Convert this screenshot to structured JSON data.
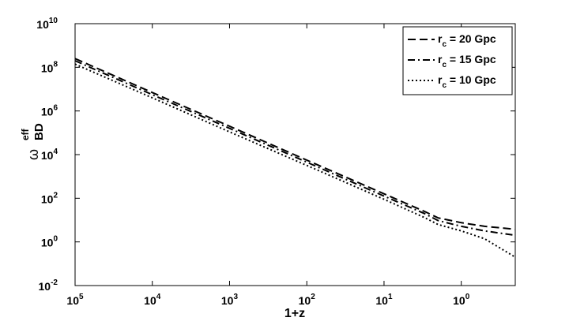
{
  "chart_data": {
    "type": "line",
    "x_label": "1+z",
    "y_label": {
      "symbol": "ω",
      "subscript": "BD",
      "superscript": "eff"
    },
    "log_x": true,
    "log_y": true,
    "xlim": [
      100000,
      0.2
    ],
    "ylim": [
      0.01,
      10000000000
    ],
    "xticks": [
      {
        "value": 100000,
        "label": "10^5"
      },
      {
        "value": 10000,
        "label": "10^4"
      },
      {
        "value": 1000,
        "label": "10^3"
      },
      {
        "value": 100,
        "label": "10^2"
      },
      {
        "value": 10,
        "label": "10^1"
      },
      {
        "value": 1,
        "label": "10^0"
      }
    ],
    "yticks": [
      {
        "value": 0.01,
        "label": "10^-2"
      },
      {
        "value": 1,
        "label": "10^0"
      },
      {
        "value": 100,
        "label": "10^2"
      },
      {
        "value": 10000,
        "label": "10^4"
      },
      {
        "value": 1000000,
        "label": "10^6"
      },
      {
        "value": 100000000,
        "label": "10^8"
      },
      {
        "value": 10000000000,
        "label": "10^10"
      }
    ],
    "legend": "top-right",
    "x": [
      100000,
      10000,
      1000,
      100,
      10,
      3,
      2,
      1,
      0.5,
      0.2
    ],
    "series": [
      {
        "name": "r_c = 20 Gpc",
        "color": "#000000",
        "dash": "10,5",
        "values": [
          250000000,
          7000000,
          200000,
          5600,
          160,
          25,
          12.6,
          7.6,
          5.2,
          3.8
        ]
      },
      {
        "name": "r_c = 15 Gpc",
        "color": "#000000",
        "dash": "9,4,2,4",
        "values": [
          200000000,
          5600000,
          160000,
          4500,
          126,
          20,
          9.5,
          5.2,
          3.2,
          2.0
        ]
      },
      {
        "name": "r_c = 10 Gpc",
        "color": "#000000",
        "dash": "2,3",
        "values": [
          140000000,
          4000000,
          110000,
          3200,
          90,
          13,
          6.3,
          3.2,
          1.4,
          0.2
        ]
      }
    ]
  }
}
